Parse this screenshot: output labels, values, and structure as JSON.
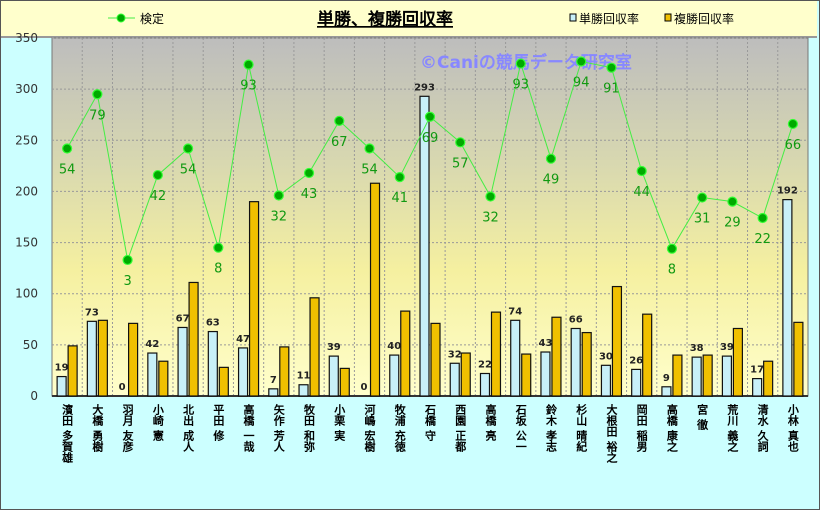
{
  "chart_data": {
    "type": "bar",
    "title": "単勝、複勝回収率",
    "watermark": "©Caniの競馬データ研究室",
    "ylim": [
      0,
      350
    ],
    "yticks": [
      0,
      50,
      100,
      150,
      200,
      250,
      300,
      350
    ],
    "grid": true,
    "legend": {
      "line": "検定",
      "win": "単勝回収率",
      "place": "複勝回収率",
      "placement": "top"
    },
    "colors": {
      "win": "#c8f0f8",
      "place": "#f0c000",
      "line": "#44ee44",
      "point": "#00aa00",
      "ptlabel": "#119911"
    },
    "categories": [
      "濱田 多賀雄",
      "大橋 勇樹",
      "羽月 友彦",
      "小崎 憲",
      "北出 成人",
      "平田 修",
      "高橋 一哉",
      "矢作 芳人",
      "牧田 和弥",
      "小栗 実",
      "河嶋 宏樹",
      "牧浦 充徳",
      "石橋 守",
      "西園 正都",
      "高橋 亮",
      "石坂 公一",
      "鈴木 孝志",
      "杉山 晴紀",
      "大根田 裕之",
      "岡田 稲男",
      "高橋 康之",
      "宮 徹",
      "荒川 義之",
      "清水 久詞",
      "小林 真也"
    ],
    "series": [
      {
        "name": "単勝回収率",
        "type": "bar",
        "values": [
          19,
          73,
          0,
          42,
          67,
          63,
          47,
          7,
          11,
          39,
          0,
          40,
          293,
          32,
          22,
          74,
          43,
          66,
          30,
          26,
          9,
          38,
          39,
          17,
          192
        ]
      },
      {
        "name": "複勝回収率",
        "type": "bar",
        "values": [
          49,
          74,
          71,
          34,
          111,
          28,
          190,
          48,
          96,
          27,
          208,
          83,
          71,
          42,
          82,
          41,
          77,
          62,
          107,
          80,
          40,
          40,
          66,
          34,
          72
        ]
      },
      {
        "name": "検定",
        "type": "line",
        "values": [
          242,
          295,
          133,
          216,
          242,
          145,
          324,
          196,
          218,
          269,
          242,
          214,
          273,
          248,
          195,
          325,
          232,
          327,
          321,
          220,
          144,
          194,
          190,
          174,
          266
        ],
        "labels": [
          "54",
          "79",
          "3",
          "42",
          "54",
          "8",
          "93",
          "32",
          "43",
          "67",
          "54",
          "41",
          "69",
          "57",
          "32",
          "93",
          "49",
          "94",
          "91",
          "44",
          "8",
          "31",
          "29",
          "22",
          "66"
        ]
      }
    ]
  }
}
